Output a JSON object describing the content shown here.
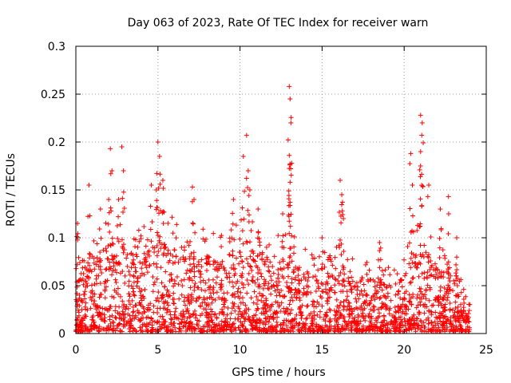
{
  "chart_data": {
    "type": "scatter",
    "title": "Day 063 of 2023, Rate Of TEC Index for receiver warn",
    "xlabel": "GPS time / hours",
    "ylabel": "ROTI / TECUs",
    "xlim": [
      0,
      25
    ],
    "ylim": [
      0,
      0.3
    ],
    "x_ticks": [
      "0",
      "5",
      "10",
      "15",
      "20",
      "25"
    ],
    "y_ticks": [
      "0",
      "0.05",
      "0.1",
      "0.15",
      "0.2",
      "0.25",
      "0.3"
    ],
    "grid": true,
    "marker": "+",
    "series_color": "#ff0000",
    "series": [
      {
        "name": "ROTI",
        "x_range": [
          0,
          24
        ],
        "baseline_envelope": [
          [
            0.0,
            0.045
          ],
          [
            0.5,
            0.06
          ],
          [
            1.0,
            0.06
          ],
          [
            1.5,
            0.07
          ],
          [
            2.0,
            0.08
          ],
          [
            2.5,
            0.09
          ],
          [
            3.0,
            0.08
          ],
          [
            3.5,
            0.07
          ],
          [
            4.0,
            0.07
          ],
          [
            4.5,
            0.08
          ],
          [
            5.0,
            0.09
          ],
          [
            5.5,
            0.08
          ],
          [
            6.0,
            0.075
          ],
          [
            6.5,
            0.07
          ],
          [
            7.0,
            0.07
          ],
          [
            7.5,
            0.07
          ],
          [
            8.0,
            0.07
          ],
          [
            8.5,
            0.065
          ],
          [
            9.0,
            0.065
          ],
          [
            9.5,
            0.07
          ],
          [
            10.0,
            0.075
          ],
          [
            10.5,
            0.08
          ],
          [
            11.0,
            0.07
          ],
          [
            11.5,
            0.065
          ],
          [
            12.0,
            0.065
          ],
          [
            12.5,
            0.065
          ],
          [
            13.0,
            0.07
          ],
          [
            13.5,
            0.06
          ],
          [
            14.0,
            0.055
          ],
          [
            14.5,
            0.055
          ],
          [
            15.0,
            0.055
          ],
          [
            15.5,
            0.055
          ],
          [
            16.0,
            0.06
          ],
          [
            16.5,
            0.05
          ],
          [
            17.0,
            0.05
          ],
          [
            17.5,
            0.05
          ],
          [
            18.0,
            0.05
          ],
          [
            18.5,
            0.05
          ],
          [
            19.0,
            0.045
          ],
          [
            19.5,
            0.045
          ],
          [
            20.0,
            0.05
          ],
          [
            20.5,
            0.07
          ],
          [
            21.0,
            0.075
          ],
          [
            21.5,
            0.07
          ],
          [
            22.0,
            0.06
          ],
          [
            22.5,
            0.055
          ],
          [
            23.0,
            0.05
          ],
          [
            23.5,
            0.035
          ],
          [
            24.0,
            0.03
          ]
        ],
        "spikes": [
          {
            "x": 0.1,
            "y": 0.115
          },
          {
            "x": 0.8,
            "y": 0.155
          },
          {
            "x": 1.5,
            "y": 0.13
          },
          {
            "x": 2.0,
            "y": 0.14
          },
          {
            "x": 2.1,
            "y": 0.193
          },
          {
            "x": 2.2,
            "y": 0.17
          },
          {
            "x": 2.6,
            "y": 0.14
          },
          {
            "x": 2.8,
            "y": 0.195
          },
          {
            "x": 2.9,
            "y": 0.17
          },
          {
            "x": 4.6,
            "y": 0.155
          },
          {
            "x": 4.9,
            "y": 0.15
          },
          {
            "x": 5.0,
            "y": 0.2
          },
          {
            "x": 5.1,
            "y": 0.185
          },
          {
            "x": 5.3,
            "y": 0.16
          },
          {
            "x": 7.1,
            "y": 0.153
          },
          {
            "x": 7.2,
            "y": 0.14
          },
          {
            "x": 9.6,
            "y": 0.14
          },
          {
            "x": 10.2,
            "y": 0.185
          },
          {
            "x": 10.4,
            "y": 0.207
          },
          {
            "x": 10.5,
            "y": 0.17
          },
          {
            "x": 10.6,
            "y": 0.15
          },
          {
            "x": 11.1,
            "y": 0.13
          },
          {
            "x": 12.6,
            "y": 0.125
          },
          {
            "x": 13.0,
            "y": 0.258
          },
          {
            "x": 13.05,
            "y": 0.245
          },
          {
            "x": 13.1,
            "y": 0.22
          },
          {
            "x": 13.0,
            "y": 0.186
          },
          {
            "x": 13.05,
            "y": 0.158
          },
          {
            "x": 15.0,
            "y": 0.1
          },
          {
            "x": 16.1,
            "y": 0.16
          },
          {
            "x": 16.2,
            "y": 0.145
          },
          {
            "x": 16.3,
            "y": 0.12
          },
          {
            "x": 18.5,
            "y": 0.095
          },
          {
            "x": 20.4,
            "y": 0.188
          },
          {
            "x": 20.5,
            "y": 0.155
          },
          {
            "x": 21.0,
            "y": 0.228
          },
          {
            "x": 21.1,
            "y": 0.22
          },
          {
            "x": 21.0,
            "y": 0.19
          },
          {
            "x": 21.5,
            "y": 0.155
          },
          {
            "x": 22.2,
            "y": 0.13
          },
          {
            "x": 22.7,
            "y": 0.143
          },
          {
            "x": 23.2,
            "y": 0.1
          }
        ]
      }
    ]
  }
}
